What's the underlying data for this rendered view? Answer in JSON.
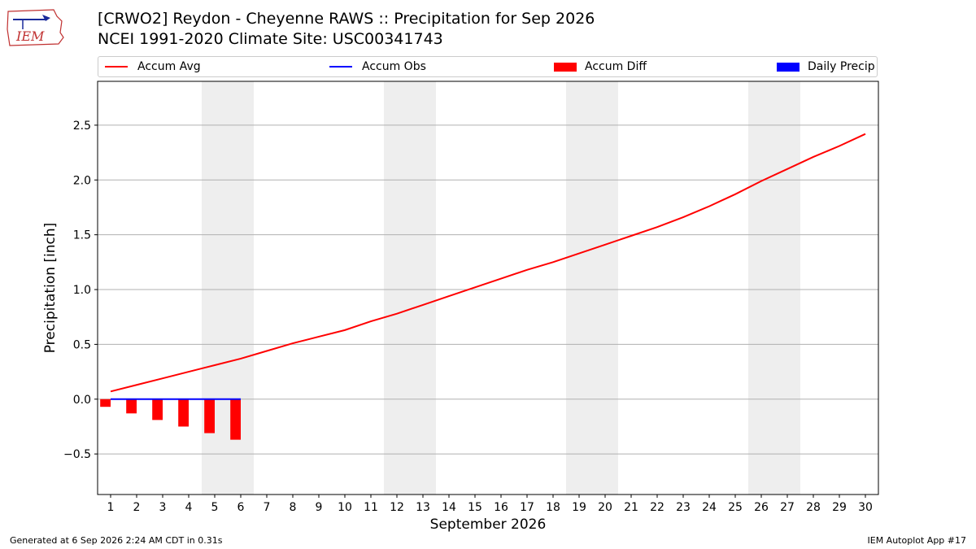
{
  "header": {
    "title_line1": "[CRWO2] Reydon - Cheyenne RAWS :: Precipitation for Sep 2026",
    "title_line2": "NCEI 1991-2020 Climate Site: USC00341743",
    "logo_text": "IEM"
  },
  "footer": {
    "generated": "Generated at 6 Sep 2026 2:24 AM CDT in 0.31s",
    "app": "IEM Autoplot App #17"
  },
  "colors": {
    "accum_avg": "#ff0000",
    "accum_obs": "#0000ff",
    "accum_diff": "#ff0000",
    "daily_precip": "#0000ff",
    "weekend_band": "#eeeeee"
  },
  "chart_data": {
    "type": "line",
    "title": "[CRWO2] Reydon - Cheyenne RAWS :: Precipitation for Sep 2026",
    "xlabel": "September 2026",
    "ylabel": "Precipitation [inch]",
    "x": [
      1,
      2,
      3,
      4,
      5,
      6,
      7,
      8,
      9,
      10,
      11,
      12,
      13,
      14,
      15,
      16,
      17,
      18,
      19,
      20,
      21,
      22,
      23,
      24,
      25,
      26,
      27,
      28,
      29,
      30
    ],
    "xlim": [
      0.5,
      30.5
    ],
    "ylim": [
      -0.87,
      2.9
    ],
    "yticks": [
      -0.5,
      0.0,
      0.5,
      1.0,
      1.5,
      2.0,
      2.5
    ],
    "ytick_labels": [
      "−0.5",
      "0.0",
      "0.5",
      "1.0",
      "1.5",
      "2.0",
      "2.5"
    ],
    "grid": "horizontal",
    "legend_position": "top",
    "weekend_bands": [
      [
        4.5,
        6.5
      ],
      [
        11.5,
        13.5
      ],
      [
        18.5,
        20.5
      ],
      [
        25.5,
        27.5
      ]
    ],
    "series": [
      {
        "name": "Accum Avg",
        "kind": "line",
        "values": [
          0.07,
          0.13,
          0.19,
          0.25,
          0.31,
          0.37,
          0.44,
          0.51,
          0.57,
          0.63,
          0.71,
          0.78,
          0.86,
          0.94,
          1.02,
          1.1,
          1.18,
          1.25,
          1.33,
          1.41,
          1.49,
          1.57,
          1.66,
          1.76,
          1.87,
          1.99,
          2.1,
          2.21,
          2.31,
          2.42
        ]
      },
      {
        "name": "Accum Obs",
        "kind": "line",
        "x": [
          1,
          2,
          3,
          4,
          5,
          6
        ],
        "values": [
          0.0,
          0.0,
          0.0,
          0.0,
          0.0,
          0.0
        ]
      },
      {
        "name": "Accum Diff",
        "kind": "bar",
        "x": [
          1,
          2,
          3,
          4,
          5,
          6
        ],
        "values": [
          -0.07,
          -0.13,
          -0.19,
          -0.25,
          -0.31,
          -0.37
        ]
      },
      {
        "name": "Daily Precip",
        "kind": "bar",
        "x": [
          1,
          2,
          3,
          4,
          5,
          6
        ],
        "values": [
          0,
          0,
          0,
          0,
          0,
          0
        ]
      }
    ]
  }
}
